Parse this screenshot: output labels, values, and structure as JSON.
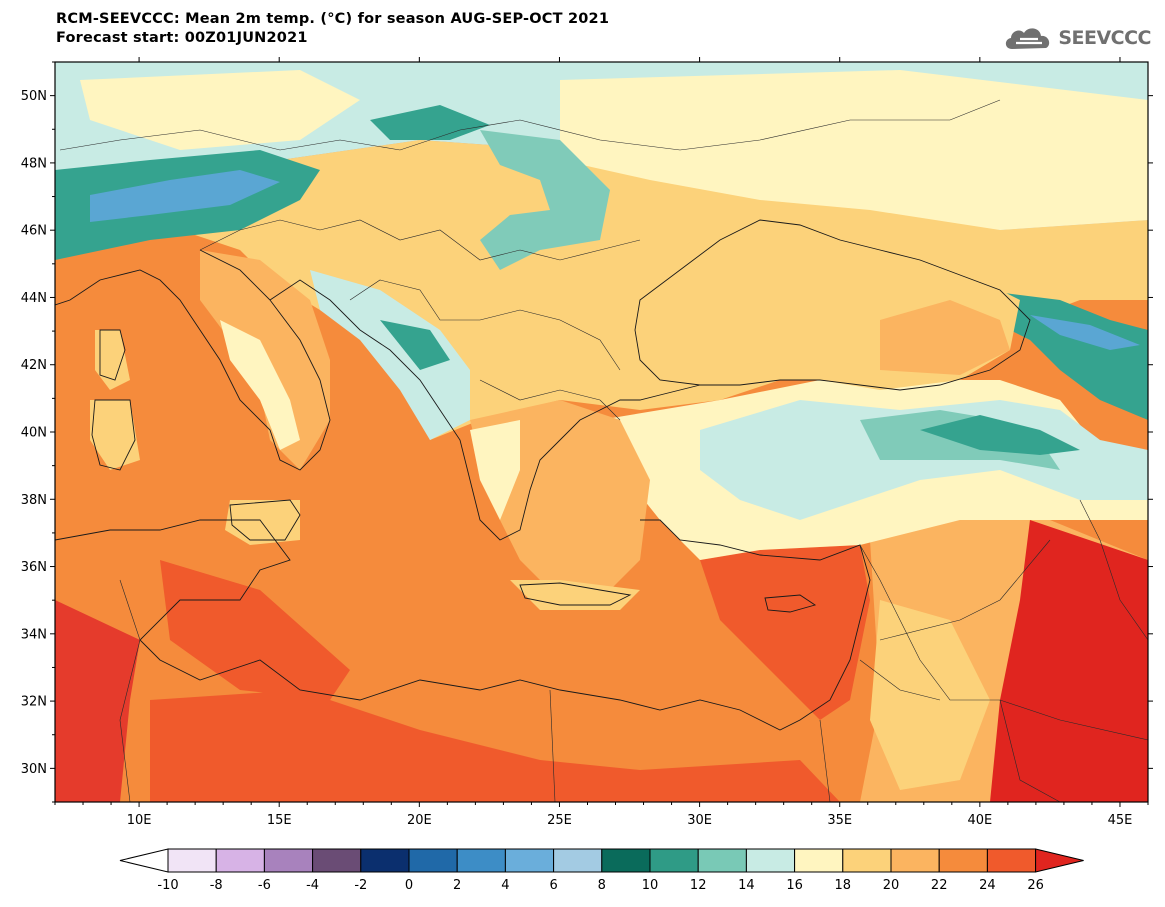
{
  "header": {
    "title_line1": "RCM-SEEVCCC: Mean 2m temp. (°C) for season AUG-SEP-OCT 2021",
    "title_line2": "Forecast start: 00Z01JUN2021"
  },
  "logo": {
    "text": "SEEVCCC",
    "icon": "cloud-icon"
  },
  "map": {
    "lon_range": [
      7,
      46
    ],
    "lat_range": [
      29,
      51
    ],
    "lat_ticks": [
      "50N",
      "48N",
      "46N",
      "44N",
      "42N",
      "40N",
      "38N",
      "36N",
      "34N",
      "32N",
      "30N"
    ],
    "lon_ticks": [
      "10E",
      "15E",
      "20E",
      "25E",
      "30E",
      "35E",
      "40E",
      "45E"
    ],
    "colors": {
      "ocean_mediterranean": "#f58b3c",
      "warm_edge": "#e53b2c",
      "very_warm": "#e0251f",
      "land_warm": "#fbb460",
      "land_mild": "#fcd27a",
      "land_cool": "#fff5c0",
      "cool_teal_light": "#c8ebe4",
      "cool_teal": "#80cbb9",
      "cool_teal_dark": "#35a38f",
      "cold_blue": "#5aa6d3"
    }
  },
  "colorbar": {
    "tick_labels": [
      "-10",
      "-8",
      "-6",
      "-4",
      "-2",
      "0",
      "2",
      "4",
      "6",
      "8",
      "10",
      "12",
      "14",
      "16",
      "18",
      "20",
      "22",
      "24",
      "26"
    ],
    "under_color": "#ffffff",
    "over_color": "#e0251f",
    "colors": [
      "#f1e4f6",
      "#d7b3e6",
      "#a882bd",
      "#6a4c75",
      "#0b2f6e",
      "#2069a8",
      "#3d8dc6",
      "#6aaedb",
      "#a3cbe3",
      "#0a6b5b",
      "#2f9b86",
      "#79c9b6",
      "#c8ebe4",
      "#fff5c0",
      "#fcd27a",
      "#fbb460",
      "#f58b3c",
      "#f05a2c"
    ]
  }
}
